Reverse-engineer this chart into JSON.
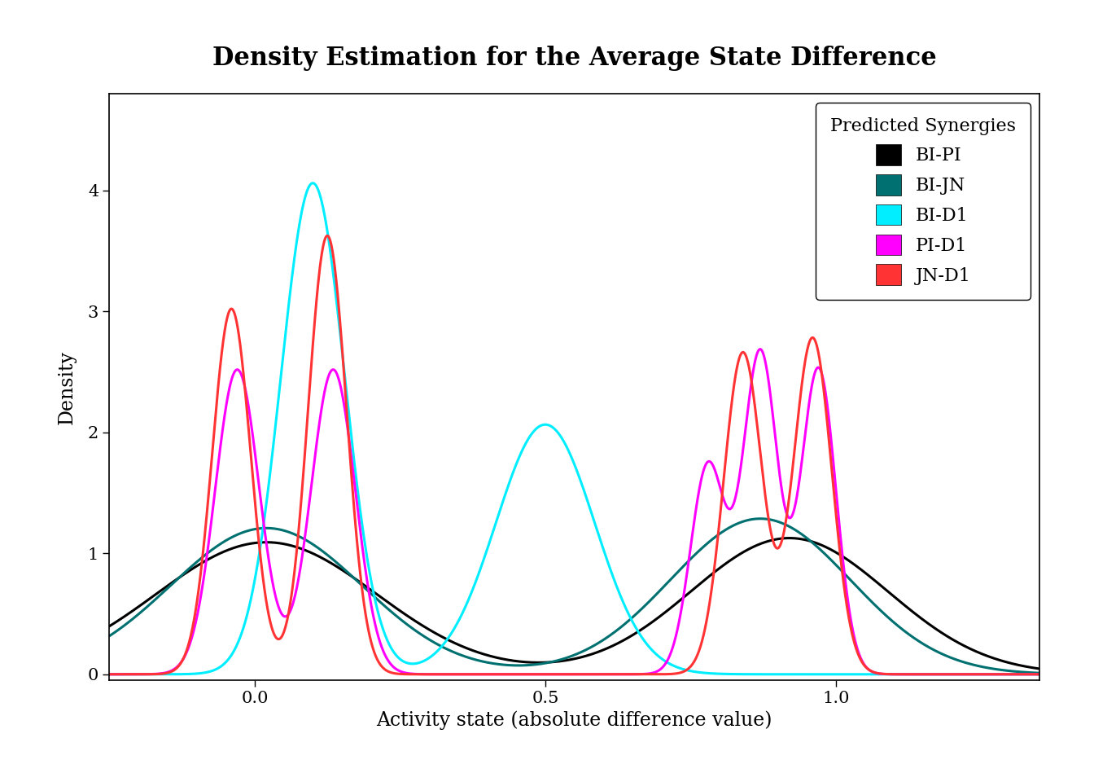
{
  "title": "Density Estimation for the Average State Difference",
  "xlabel": "Activity state (absolute difference value)",
  "ylabel": "Density",
  "xlim": [
    -0.25,
    1.35
  ],
  "ylim": [
    -0.05,
    4.8
  ],
  "xticks": [
    0.0,
    0.5,
    1.0
  ],
  "yticks": [
    0,
    1,
    2,
    3,
    4
  ],
  "legend_title": "Predicted Synergies",
  "series": [
    {
      "label": "BI-PI",
      "color": "#000000",
      "components": [
        {
          "mean": 0.02,
          "std": 0.19,
          "weight": 0.52
        },
        {
          "mean": 0.92,
          "std": 0.17,
          "weight": 0.48
        }
      ]
    },
    {
      "label": "BI-JN",
      "color": "#007070",
      "components": [
        {
          "mean": 0.02,
          "std": 0.165,
          "weight": 0.5
        },
        {
          "mean": 0.87,
          "std": 0.155,
          "weight": 0.5
        }
      ]
    },
    {
      "label": "BI-D1",
      "color": "#00EEFF",
      "components": [
        {
          "mean": 0.1,
          "std": 0.055,
          "weight": 0.56
        },
        {
          "mean": 0.5,
          "std": 0.085,
          "weight": 0.44
        }
      ]
    },
    {
      "label": "PI-D1",
      "color": "#FF00FF",
      "components": [
        {
          "mean": -0.03,
          "std": 0.038,
          "weight": 0.24
        },
        {
          "mean": 0.135,
          "std": 0.038,
          "weight": 0.24
        },
        {
          "mean": 0.78,
          "std": 0.03,
          "weight": 0.13
        },
        {
          "mean": 0.87,
          "std": 0.03,
          "weight": 0.2
        },
        {
          "mean": 0.97,
          "std": 0.03,
          "weight": 0.19
        }
      ]
    },
    {
      "label": "JN-D1",
      "color": "#FF3333",
      "components": [
        {
          "mean": -0.04,
          "std": 0.033,
          "weight": 0.25
        },
        {
          "mean": 0.125,
          "std": 0.033,
          "weight": 0.3
        },
        {
          "mean": 0.84,
          "std": 0.033,
          "weight": 0.22
        },
        {
          "mean": 0.96,
          "std": 0.033,
          "weight": 0.23
        }
      ]
    }
  ],
  "background_color": "#ffffff",
  "title_fontsize": 22,
  "label_fontsize": 17,
  "tick_fontsize": 15,
  "legend_fontsize": 16,
  "linewidth": 2.2
}
